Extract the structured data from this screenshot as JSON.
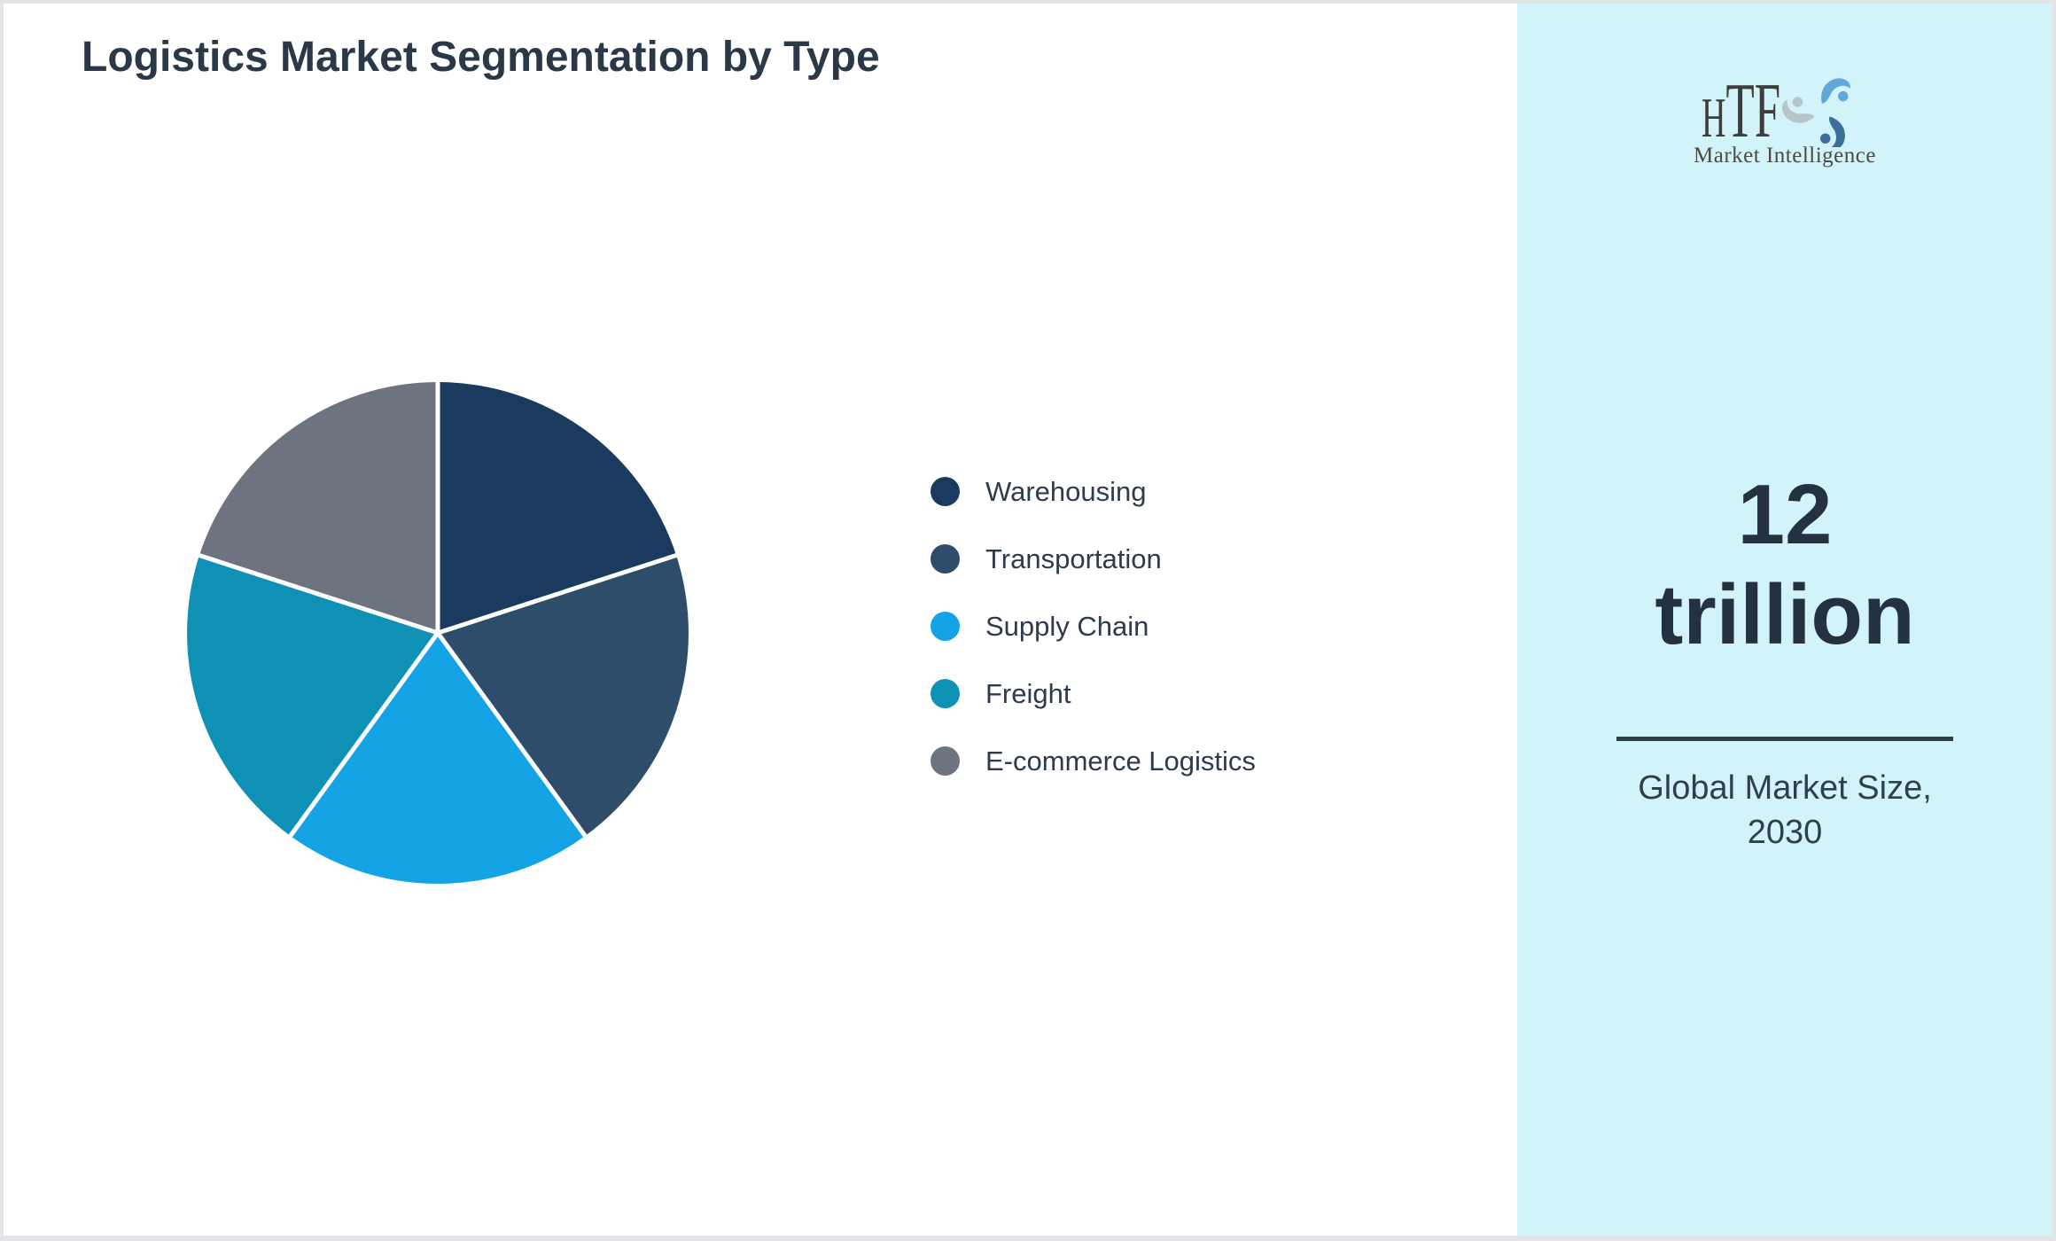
{
  "header": {
    "title": "Logistics Market Segmentation by Type"
  },
  "chart_data": {
    "type": "pie",
    "title": "Logistics Market Segmentation by Type",
    "labels": [
      "Warehousing",
      "Transportation",
      "Supply Chain",
      "Freight",
      "E-commerce Logistics"
    ],
    "values": [
      20,
      20,
      20,
      20,
      20
    ],
    "unit": "percent",
    "colors": [
      "#1b3a60",
      "#2e4d6b",
      "#14a4e6",
      "#0e91b4",
      "#6d7480"
    ],
    "start_angle_deg": -90,
    "direction": "clockwise",
    "slice_border_color": "#ffffff",
    "legend_position": "right",
    "data_labels": "none"
  },
  "sidebar": {
    "background_color": "#d2f3fa",
    "logo": {
      "text": "HTF",
      "tagline": "Market Intelligence",
      "icon": "swirl-figures-icon"
    },
    "metric": {
      "value": "12 trillion",
      "caption": "Global Market Size, 2030"
    }
  }
}
